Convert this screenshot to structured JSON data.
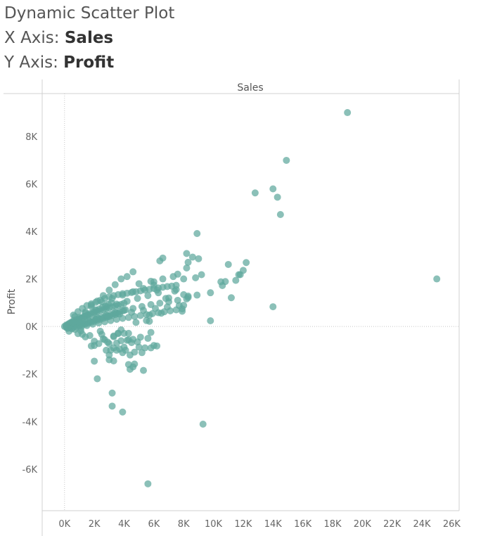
{
  "header": {
    "title": "Dynamic Scatter Plot",
    "x_prefix": "X Axis: ",
    "x_field": "Sales",
    "y_prefix": "Y Axis: ",
    "y_field": "Profit"
  },
  "chart_data": {
    "type": "scatter",
    "title": "",
    "xlabel": "Sales",
    "ylabel": "Profit",
    "xlim": [
      -1500,
      26500
    ],
    "ylim": [
      -7750,
      9800
    ],
    "xticks": [
      0,
      2000,
      4000,
      6000,
      8000,
      10000,
      12000,
      14000,
      16000,
      18000,
      20000,
      22000,
      24000,
      26000
    ],
    "xtick_labels": [
      "0K",
      "2K",
      "4K",
      "6K",
      "8K",
      "10K",
      "12K",
      "14K",
      "16K",
      "18K",
      "20K",
      "22K",
      "24K",
      "26K"
    ],
    "yticks": [
      -6000,
      -4000,
      -2000,
      0,
      2000,
      4000,
      6000,
      8000
    ],
    "ytick_labels": [
      "-6K",
      "-4K",
      "-2K",
      "0K",
      "2K",
      "4K",
      "6K",
      "8K"
    ],
    "grid": false,
    "zero_lines": true,
    "point_color": "#5ea79d",
    "x": [
      19000,
      14900,
      14000,
      14300,
      12800,
      14500,
      8900,
      8200,
      8600,
      6600,
      6400,
      8200,
      9000,
      11000,
      9200,
      8800,
      12200,
      12000,
      11700,
      8300,
      7600,
      7300,
      6600,
      10500,
      10600,
      10800,
      11500,
      11200,
      9800,
      8300,
      7400,
      7000,
      6200,
      14000,
      9800,
      7500,
      6800,
      6000,
      8000,
      5800,
      8900,
      8000,
      8300,
      7900,
      11800,
      5500,
      4800,
      5700,
      6500,
      8000,
      5700,
      25000,
      2200,
      3200,
      3200,
      3900,
      9300,
      5600,
      3000,
      3300,
      4300,
      4600,
      4100,
      4400,
      3900,
      3300,
      4700,
      5200,
      5400,
      4900,
      5600,
      6000,
      5800,
      5300,
      5800,
      4500,
      4200,
      3800,
      3500,
      4000,
      4400,
      5000,
      4700,
      3600,
      5100,
      4600,
      4000,
      3700,
      4300,
      6200,
      3000,
      2800,
      3100,
      3500,
      3000,
      3300,
      2700,
      2400,
      2000,
      1800,
      2300,
      2600,
      1200,
      1400,
      1700,
      900,
      1100,
      2000,
      2500,
      3300,
      3800,
      4300,
      2900,
      3600,
      2000,
      0,
      100,
      200,
      300,
      400,
      500,
      600,
      800,
      1000,
      1200,
      1400,
      1600,
      1800,
      2000,
      2200,
      2400,
      2600,
      2800,
      3000,
      3200,
      3400,
      3600,
      3800,
      4000,
      100,
      300,
      500,
      700,
      900,
      1100,
      1300,
      1500,
      1700,
      1900,
      2100,
      2300,
      2500,
      2700,
      2900,
      3100,
      3300,
      3500,
      3700,
      3900,
      4100,
      200,
      400,
      600,
      800,
      1000,
      1200,
      1400,
      1600,
      1800,
      2000,
      2200,
      2400,
      2600,
      2800,
      3000,
      3200,
      3400,
      3600,
      150,
      350,
      550,
      750,
      950,
      1150,
      1350,
      1550,
      1750,
      1950,
      2150,
      2350,
      2550,
      2750,
      2950,
      3150,
      600,
      900,
      1200,
      1500,
      1800,
      2100,
      2400,
      2700,
      3000,
      3300,
      3600,
      3900,
      4200,
      4500,
      4800,
      5100,
      5400,
      5700,
      6000,
      6300,
      6600,
      6900,
      7200,
      7500,
      1000,
      1600,
      2200,
      2800,
      3400,
      4000,
      4600,
      5200,
      5800,
      6400,
      7000,
      7600,
      8200,
      500,
      1300,
      2100,
      2900,
      3700,
      4500,
      5300,
      6100,
      6900,
      7700,
      300,
      700,
      1100,
      1500,
      1900,
      2300,
      2700,
      3100,
      3500,
      3900,
      4300,
      4700,
      5100,
      5500,
      5900,
      6300,
      6700,
      7100,
      7500,
      7900,
      700,
      1400,
      2100,
      2800,
      3500,
      4200,
      4900,
      5600,
      6300,
      1800,
      2500,
      3200,
      3900,
      4600,
      5300,
      6000,
      200,
      600,
      1000,
      1400,
      1800,
      2200,
      2600,
      3000,
      3400,
      3800,
      4200,
      4600,
      5000
    ],
    "y": [
      9000,
      6990,
      5790,
      5440,
      5620,
      4710,
      3910,
      3070,
      2920,
      2880,
      2760,
      2460,
      2850,
      2610,
      2180,
      2050,
      2690,
      2360,
      2180,
      2700,
      2200,
      2100,
      2000,
      1880,
      1720,
      1890,
      1940,
      1210,
      1420,
      1280,
      1490,
      1200,
      1530,
      830,
      240,
      1550,
      1180,
      1880,
      1340,
      1900,
      1320,
      890,
      1220,
      640,
      2180,
      250,
      170,
      480,
      560,
      2000,
      220,
      2000,
      -2200,
      -2800,
      -3350,
      -3600,
      -4110,
      -6620,
      -1200,
      -1450,
      -1600,
      -1700,
      -1000,
      -1200,
      -1100,
      -900,
      -1580,
      -1100,
      -900,
      -650,
      -500,
      -800,
      -900,
      -1850,
      -250,
      -680,
      -580,
      -600,
      -1000,
      -870,
      -1800,
      -870,
      -1080,
      -300,
      -450,
      -540,
      -290,
      -950,
      -290,
      -820,
      -1400,
      -1000,
      -1000,
      -700,
      -720,
      -400,
      -560,
      -200,
      -800,
      -820,
      -720,
      -520,
      -330,
      -440,
      -380,
      -300,
      -180,
      -620,
      -330,
      -430,
      -140,
      -560,
      -660,
      -280,
      -1460,
      0,
      50,
      80,
      120,
      160,
      190,
      240,
      290,
      330,
      380,
      430,
      480,
      520,
      570,
      620,
      660,
      700,
      740,
      780,
      820,
      860,
      890,
      930,
      980,
      -20,
      -10,
      20,
      40,
      70,
      110,
      140,
      180,
      210,
      260,
      300,
      340,
      380,
      420,
      460,
      500,
      540,
      580,
      620,
      660,
      700,
      -80,
      -60,
      -40,
      -20,
      20,
      60,
      100,
      140,
      180,
      220,
      260,
      300,
      340,
      380,
      420,
      460,
      500,
      540,
      30,
      90,
      160,
      220,
      290,
      350,
      420,
      480,
      550,
      610,
      680,
      740,
      810,
      870,
      940,
      1000,
      480,
      620,
      760,
      880,
      950,
      1020,
      1100,
      1180,
      1250,
      1300,
      1340,
      1380,
      1400,
      1430,
      1460,
      1500,
      1530,
      1560,
      1600,
      1620,
      1650,
      1680,
      1700,
      1730,
      150,
      260,
      380,
      480,
      580,
      680,
      760,
      840,
      920,
      980,
      1040,
      1100,
      1160,
      -100,
      120,
      300,
      420,
      520,
      600,
      680,
      760,
      820,
      880,
      -200,
      -120,
      -60,
      40,
      100,
      150,
      200,
      250,
      300,
      340,
      380,
      420,
      460,
      500,
      540,
      580,
      620,
      660,
      700,
      740,
      420,
      560,
      700,
      820,
      940,
      1060,
      1180,
      1300,
      1420,
      900,
      1040,
      1180,
      1320,
      1460,
      1600,
      1740,
      -50,
      150,
      380,
      610,
      840,
      1070,
      1300,
      1530,
      1760,
      2000,
      2100,
      2300,
      1800
    ]
  }
}
